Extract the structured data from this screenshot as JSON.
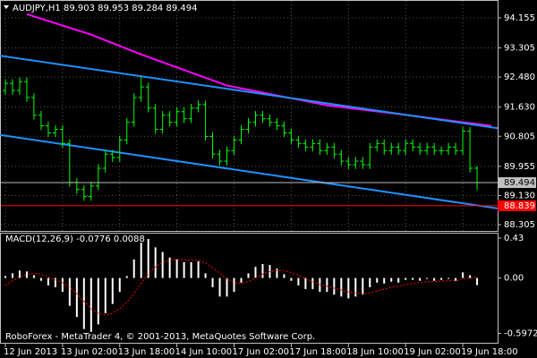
{
  "chart_data": [
    {
      "type": "candlestick",
      "title": "AUDJPY,H1  89.903 89.953 89.284 89.494",
      "color": "#00ff00",
      "open": [
        92.1,
        92.3,
        92.1,
        92.35,
        91.9,
        91.4,
        91.1,
        90.9,
        91.0,
        90.6,
        89.5,
        89.3,
        89.1,
        89.4,
        89.9,
        90.3,
        90.2,
        90.7,
        91.2,
        91.9,
        92.2,
        91.6,
        91.0,
        91.4,
        91.2,
        91.5,
        91.3,
        91.6,
        91.7,
        90.8,
        90.3,
        90.1,
        90.4,
        90.7,
        91.0,
        91.2,
        91.4,
        91.3,
        91.2,
        91.1,
        90.9,
        90.7,
        90.6,
        90.5,
        90.6,
        90.4,
        90.5,
        90.3,
        90.1,
        90.0,
        90.1,
        90.0,
        90.5,
        90.6,
        90.4,
        90.5,
        90.4,
        90.6,
        90.5,
        90.4,
        90.5,
        90.4,
        90.4,
        90.5,
        90.4,
        90.95,
        89.903
      ],
      "high": [
        92.42,
        92.42,
        92.47,
        92.47,
        92.02,
        91.52,
        91.22,
        91.12,
        91.12,
        90.72,
        89.62,
        89.42,
        89.52,
        90.02,
        90.42,
        90.42,
        90.82,
        91.32,
        92.02,
        92.5,
        92.32,
        91.72,
        91.52,
        91.52,
        91.62,
        91.62,
        91.72,
        91.82,
        91.82,
        90.92,
        90.42,
        90.52,
        90.82,
        91.12,
        91.32,
        91.52,
        91.52,
        91.42,
        91.32,
        91.22,
        91.02,
        90.82,
        90.72,
        90.72,
        90.72,
        90.62,
        90.62,
        90.42,
        90.22,
        90.22,
        90.22,
        90.62,
        90.72,
        90.72,
        90.62,
        90.62,
        90.72,
        90.72,
        90.62,
        90.62,
        90.62,
        90.52,
        90.62,
        90.62,
        91.07,
        91.07,
        89.953
      ],
      "low": [
        91.98,
        91.98,
        91.98,
        91.78,
        91.28,
        90.98,
        90.78,
        90.78,
        90.48,
        89.38,
        89.18,
        88.98,
        88.98,
        89.28,
        89.78,
        90.08,
        90.08,
        90.58,
        91.08,
        91.78,
        91.48,
        90.88,
        90.88,
        91.08,
        91.08,
        91.18,
        91.18,
        91.48,
        90.68,
        90.18,
        89.98,
        89.98,
        90.28,
        90.58,
        90.88,
        91.08,
        91.18,
        91.08,
        90.98,
        90.78,
        90.58,
        90.48,
        90.38,
        90.38,
        90.28,
        90.28,
        90.18,
        89.98,
        89.88,
        89.88,
        89.88,
        89.88,
        90.38,
        90.28,
        90.28,
        90.28,
        90.28,
        90.38,
        90.28,
        90.28,
        90.28,
        90.28,
        90.28,
        90.28,
        90.28,
        89.78,
        89.284
      ],
      "close": [
        92.3,
        92.1,
        92.35,
        91.9,
        91.4,
        91.1,
        90.9,
        91.0,
        90.6,
        89.5,
        89.3,
        89.1,
        89.4,
        89.9,
        90.3,
        90.2,
        90.7,
        91.2,
        91.9,
        92.2,
        91.6,
        91.0,
        91.4,
        91.2,
        91.5,
        91.3,
        91.6,
        91.7,
        90.8,
        90.3,
        90.1,
        90.4,
        90.7,
        91.0,
        91.2,
        91.4,
        91.3,
        91.2,
        91.1,
        90.9,
        90.7,
        90.6,
        90.5,
        90.6,
        90.4,
        90.5,
        90.3,
        90.1,
        90.0,
        90.1,
        90.0,
        90.5,
        90.6,
        90.4,
        90.5,
        90.4,
        90.6,
        90.5,
        90.4,
        90.5,
        90.4,
        90.4,
        90.5,
        90.4,
        90.95,
        89.9,
        89.494
      ],
      "overlays": [
        {
          "color": "#ff00ff",
          "x": [
            3,
            12,
            19,
            31,
            45,
            56,
            68
          ],
          "values": [
            94.26,
            93.68,
            93.12,
            92.24,
            91.68,
            91.41,
            91.1
          ]
        },
        {
          "color": "#1e90ff",
          "x": [
            -1,
            69
          ],
          "values": [
            93.09,
            91.03
          ]
        },
        {
          "color": "#1e90ff",
          "x": [
            -1,
            69
          ],
          "values": [
            90.85,
            88.76
          ]
        }
      ],
      "price_lines": [
        {
          "value": 89.494,
          "color": "#c0c0c0"
        },
        {
          "value": 88.839,
          "color": "#ff0000"
        }
      ],
      "ylim": [
        88.128,
        94.634
      ],
      "yticks": [
        94.155,
        93.305,
        {
          "value": 92.48,
          "label": "92.480"
        },
        {
          "value": 91.63,
          "label": "91.630"
        },
        90.805,
        89.955,
        {
          "value": 89.13,
          "label": "89.130"
        },
        88.305
      ],
      "xlim": [
        -0.625,
        68.875
      ],
      "xticks": [
        {
          "value": 0,
          "label": "12 Jun 2013"
        },
        {
          "value": 8,
          "label": "13 Jun 02:00"
        },
        {
          "value": 16,
          "label": "13 Jun 18:00"
        },
        {
          "value": 24,
          "label": "14 Jun 10:00"
        },
        {
          "value": 32,
          "label": "17 Jun 02:00"
        },
        {
          "value": 40,
          "label": "17 Jun 18:00"
        },
        {
          "value": 48,
          "label": "18 Jun 10:00"
        },
        {
          "value": 56,
          "label": "19 Jun 02:00"
        },
        {
          "value": 64,
          "label": "19 Jun 18:00"
        }
      ],
      "grid": true
    },
    {
      "type": "macd",
      "title": "MACD(12,26,9) -0.0776 0.0088",
      "series": [
        {
          "kind": "bar",
          "color": "#ffffff",
          "values": [
            0.02,
            0.05,
            0.08,
            0.07,
            0.03,
            -0.03,
            -0.08,
            -0.1,
            -0.15,
            -0.3,
            -0.42,
            -0.55,
            -0.58,
            -0.5,
            -0.38,
            -0.28,
            -0.15,
            0.02,
            0.2,
            0.38,
            0.42,
            0.33,
            0.28,
            0.22,
            0.2,
            0.17,
            0.17,
            0.18,
            0.05,
            -0.1,
            -0.2,
            -0.2,
            -0.15,
            -0.05,
            0.05,
            0.12,
            0.15,
            0.14,
            0.1,
            0.04,
            -0.03,
            -0.08,
            -0.12,
            -0.12,
            -0.15,
            -0.15,
            -0.18,
            -0.2,
            -0.22,
            -0.2,
            -0.18,
            -0.1,
            -0.05,
            -0.06,
            -0.04,
            -0.05,
            -0.02,
            -0.02,
            -0.03,
            -0.01,
            -0.03,
            -0.02,
            -0.01,
            -0.03,
            0.06,
            0.03,
            -0.0776
          ]
        },
        {
          "kind": "line",
          "color": "#ff0000",
          "values": [
            -0.08,
            -0.03,
            0.01,
            0.04,
            0.05,
            0.04,
            0.01,
            -0.02,
            -0.05,
            -0.1,
            -0.17,
            -0.25,
            -0.33,
            -0.38,
            -0.4,
            -0.38,
            -0.33,
            -0.26,
            -0.17,
            -0.06,
            0.05,
            0.12,
            0.17,
            0.19,
            0.2,
            0.2,
            0.19,
            0.19,
            0.16,
            0.11,
            0.05,
            -0.01,
            -0.05,
            -0.06,
            -0.04,
            0.0,
            0.04,
            0.07,
            0.08,
            0.08,
            0.06,
            0.03,
            -0.01,
            -0.04,
            -0.07,
            -0.09,
            -0.11,
            -0.13,
            -0.15,
            -0.16,
            -0.17,
            -0.16,
            -0.14,
            -0.12,
            -0.1,
            -0.09,
            -0.07,
            -0.06,
            -0.05,
            -0.04,
            -0.04,
            -0.03,
            -0.03,
            -0.03,
            -0.01,
            0.0,
            0.0088
          ]
        }
      ],
      "ylim": [
        -0.698,
        0.478
      ],
      "yticks": [
        0.43,
        {
          "value": 0,
          "label": "0.00"
        },
        -0.5972
      ]
    }
  ],
  "footer": "RoboForex - MetaTrader 4, © 2001-2013, MetaQuotes Software Corp."
}
